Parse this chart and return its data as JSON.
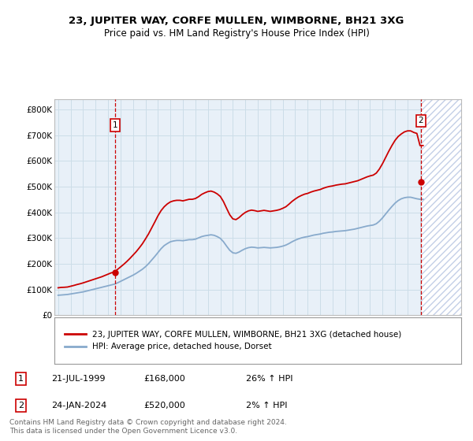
{
  "title": "23, JUPITER WAY, CORFE MULLEN, WIMBORNE, BH21 3XG",
  "subtitle": "Price paid vs. HM Land Registry's House Price Index (HPI)",
  "ylabel_ticks": [
    "£0",
    "£100K",
    "£200K",
    "£300K",
    "£400K",
    "£500K",
    "£600K",
    "£700K",
    "£800K"
  ],
  "ylim": [
    0,
    840000
  ],
  "xlim_start": 1994.7,
  "xlim_end": 2027.3,
  "transaction1_date": 1999.55,
  "transaction1_price": 168000,
  "transaction1_label": "1",
  "transaction2_date": 2024.07,
  "transaction2_price": 520000,
  "transaction2_label": "2",
  "line_color_property": "#cc0000",
  "line_color_hpi": "#88aacc",
  "hatch_color": "#aabbcc",
  "grid_color": "#ccdde8",
  "bg_color": "#e8f0f8",
  "legend_line1": "23, JUPITER WAY, CORFE MULLEN, WIMBORNE, BH21 3XG (detached house)",
  "legend_line2": "HPI: Average price, detached house, Dorset",
  "table_row1": [
    "1",
    "21-JUL-1999",
    "£168,000",
    "26% ↑ HPI"
  ],
  "table_row2": [
    "2",
    "24-JAN-2024",
    "£520,000",
    "2% ↑ HPI"
  ],
  "footer": "Contains HM Land Registry data © Crown copyright and database right 2024.\nThis data is licensed under the Open Government Licence v3.0.",
  "hpi_years": [
    1995.0,
    1995.25,
    1995.5,
    1995.75,
    1996.0,
    1996.25,
    1996.5,
    1996.75,
    1997.0,
    1997.25,
    1997.5,
    1997.75,
    1998.0,
    1998.25,
    1998.5,
    1998.75,
    1999.0,
    1999.25,
    1999.5,
    1999.75,
    2000.0,
    2000.25,
    2000.5,
    2000.75,
    2001.0,
    2001.25,
    2001.5,
    2001.75,
    2002.0,
    2002.25,
    2002.5,
    2002.75,
    2003.0,
    2003.25,
    2003.5,
    2003.75,
    2004.0,
    2004.25,
    2004.5,
    2004.75,
    2005.0,
    2005.25,
    2005.5,
    2005.75,
    2006.0,
    2006.25,
    2006.5,
    2006.75,
    2007.0,
    2007.25,
    2007.5,
    2007.75,
    2008.0,
    2008.25,
    2008.5,
    2008.75,
    2009.0,
    2009.25,
    2009.5,
    2009.75,
    2010.0,
    2010.25,
    2010.5,
    2010.75,
    2011.0,
    2011.25,
    2011.5,
    2011.75,
    2012.0,
    2012.25,
    2012.5,
    2012.75,
    2013.0,
    2013.25,
    2013.5,
    2013.75,
    2014.0,
    2014.25,
    2014.5,
    2014.75,
    2015.0,
    2015.25,
    2015.5,
    2015.75,
    2016.0,
    2016.25,
    2016.5,
    2016.75,
    2017.0,
    2017.25,
    2017.5,
    2017.75,
    2018.0,
    2018.25,
    2018.5,
    2018.75,
    2019.0,
    2019.25,
    2019.5,
    2019.75,
    2020.0,
    2020.25,
    2020.5,
    2020.75,
    2021.0,
    2021.25,
    2021.5,
    2021.75,
    2022.0,
    2022.25,
    2022.5,
    2022.75,
    2023.0,
    2023.25,
    2023.5,
    2023.75,
    2024.0,
    2024.25
  ],
  "hpi_values": [
    78000,
    79000,
    80000,
    81000,
    83000,
    85000,
    87000,
    89000,
    91000,
    94000,
    97000,
    100000,
    103000,
    106000,
    109000,
    112000,
    115000,
    118000,
    121000,
    126000,
    132000,
    138000,
    144000,
    150000,
    156000,
    163000,
    171000,
    179000,
    189000,
    201000,
    215000,
    229000,
    244000,
    259000,
    271000,
    279000,
    286000,
    289000,
    291000,
    291000,
    290000,
    292000,
    294000,
    294000,
    296000,
    301000,
    306000,
    309000,
    311000,
    313000,
    311000,
    306000,
    299000,
    286000,
    269000,
    253000,
    243000,
    241000,
    246000,
    253000,
    259000,
    263000,
    265000,
    264000,
    262000,
    263000,
    264000,
    263000,
    262000,
    263000,
    264000,
    266000,
    269000,
    273000,
    279000,
    286000,
    292000,
    297000,
    301000,
    304000,
    306000,
    309000,
    312000,
    314000,
    316000,
    319000,
    321000,
    323000,
    324000,
    326000,
    327000,
    328000,
    329000,
    331000,
    333000,
    335000,
    338000,
    341000,
    344000,
    347000,
    349000,
    351000,
    356000,
    366000,
    379000,
    394000,
    409000,
    423000,
    436000,
    446000,
    453000,
    457000,
    459000,
    459000,
    456000,
    453000,
    451000,
    451000
  ],
  "property_years": [
    1995.0,
    1995.25,
    1995.5,
    1995.75,
    1996.0,
    1996.25,
    1996.5,
    1996.75,
    1997.0,
    1997.25,
    1997.5,
    1997.75,
    1998.0,
    1998.25,
    1998.5,
    1998.75,
    1999.0,
    1999.25,
    1999.5,
    1999.75,
    2000.0,
    2000.25,
    2000.5,
    2000.75,
    2001.0,
    2001.25,
    2001.5,
    2001.75,
    2002.0,
    2002.25,
    2002.5,
    2002.75,
    2003.0,
    2003.25,
    2003.5,
    2003.75,
    2004.0,
    2004.25,
    2004.5,
    2004.75,
    2005.0,
    2005.25,
    2005.5,
    2005.75,
    2006.0,
    2006.25,
    2006.5,
    2006.75,
    2007.0,
    2007.25,
    2007.5,
    2007.75,
    2008.0,
    2008.25,
    2008.5,
    2008.75,
    2009.0,
    2009.25,
    2009.5,
    2009.75,
    2010.0,
    2010.25,
    2010.5,
    2010.75,
    2011.0,
    2011.25,
    2011.5,
    2011.75,
    2012.0,
    2012.25,
    2012.5,
    2012.75,
    2013.0,
    2013.25,
    2013.5,
    2013.75,
    2014.0,
    2014.25,
    2014.5,
    2014.75,
    2015.0,
    2015.25,
    2015.5,
    2015.75,
    2016.0,
    2016.25,
    2016.5,
    2016.75,
    2017.0,
    2017.25,
    2017.5,
    2017.75,
    2018.0,
    2018.25,
    2018.5,
    2018.75,
    2019.0,
    2019.25,
    2019.5,
    2019.75,
    2020.0,
    2020.25,
    2020.5,
    2020.75,
    2021.0,
    2021.25,
    2021.5,
    2021.75,
    2022.0,
    2022.25,
    2022.5,
    2022.75,
    2023.0,
    2023.25,
    2023.5,
    2023.75,
    2024.0,
    2024.25
  ],
  "property_values": [
    107000,
    108500,
    109000,
    110000,
    113000,
    116000,
    119500,
    122500,
    126000,
    130000,
    134000,
    138000,
    142000,
    146000,
    150000,
    155000,
    160000,
    165000,
    168000,
    178000,
    188000,
    198000,
    209000,
    221000,
    234000,
    247000,
    262000,
    278000,
    297000,
    317000,
    340000,
    363000,
    387000,
    407000,
    422000,
    433000,
    441000,
    445000,
    447000,
    447000,
    445000,
    448000,
    451000,
    451000,
    454000,
    461000,
    470000,
    476000,
    481000,
    483000,
    479000,
    472000,
    462000,
    442000,
    416000,
    391000,
    375000,
    372000,
    380000,
    391000,
    400000,
    406000,
    409000,
    407000,
    404000,
    406000,
    408000,
    406000,
    404000,
    406000,
    408000,
    411000,
    416000,
    422000,
    432000,
    443000,
    452000,
    460000,
    466000,
    471000,
    474000,
    479000,
    483000,
    486000,
    489000,
    494000,
    498000,
    501000,
    503000,
    506000,
    508000,
    510000,
    511000,
    514000,
    517000,
    520000,
    523000,
    528000,
    533000,
    538000,
    542000,
    545000,
    553000,
    569000,
    590000,
    614000,
    638000,
    660000,
    680000,
    695000,
    705000,
    713000,
    717000,
    717000,
    711000,
    707000,
    660000,
    660000
  ],
  "future_start": 2024.07,
  "future_end": 2027.3
}
